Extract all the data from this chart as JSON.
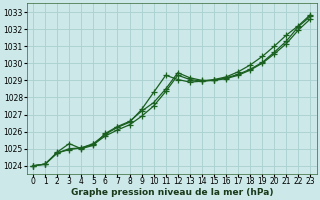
{
  "xlabel": "Graphe pression niveau de la mer (hPa)",
  "background_color": "#cce8e8",
  "grid_color": "#aacfcf",
  "line_color": "#1a6020",
  "x": [
    0,
    1,
    2,
    3,
    4,
    5,
    6,
    7,
    8,
    9,
    10,
    11,
    12,
    13,
    14,
    15,
    16,
    17,
    18,
    19,
    20,
    21,
    22,
    23
  ],
  "line1": [
    1024.0,
    1024.1,
    1024.8,
    1025.3,
    1025.0,
    1025.2,
    1025.9,
    1026.3,
    1026.6,
    1027.2,
    1027.7,
    1028.5,
    1029.45,
    1029.15,
    1029.0,
    1029.0,
    1029.15,
    1029.35,
    1029.65,
    1030.05,
    1030.65,
    1031.3,
    1032.15,
    1032.75
  ],
  "line2": [
    1024.0,
    1024.1,
    1024.75,
    1025.0,
    1025.05,
    1025.25,
    1025.75,
    1026.1,
    1026.4,
    1026.9,
    1027.5,
    1028.35,
    1029.3,
    1029.05,
    1028.95,
    1029.0,
    1029.1,
    1029.3,
    1029.6,
    1030.0,
    1030.55,
    1031.15,
    1031.95,
    1032.6
  ],
  "line3": [
    1024.0,
    1024.1,
    1024.75,
    1024.95,
    1025.05,
    1025.3,
    1025.85,
    1026.25,
    1026.55,
    1027.3,
    1028.3,
    1029.3,
    1029.05,
    1028.9,
    1028.95,
    1029.05,
    1029.2,
    1029.5,
    1029.9,
    1030.4,
    1031.0,
    1031.65,
    1032.2,
    1032.85
  ],
  "ylim": [
    1023.5,
    1033.5
  ],
  "yticks": [
    1024,
    1025,
    1026,
    1027,
    1028,
    1029,
    1030,
    1031,
    1032,
    1033
  ],
  "xlim": [
    -0.5,
    23.5
  ],
  "xticks": [
    0,
    1,
    2,
    3,
    4,
    5,
    6,
    7,
    8,
    9,
    10,
    11,
    12,
    13,
    14,
    15,
    16,
    17,
    18,
    19,
    20,
    21,
    22,
    23
  ],
  "marker": "+",
  "markersize": 4,
  "linewidth": 0.9,
  "tick_fontsize": 5.5,
  "xlabel_fontsize": 6.5
}
